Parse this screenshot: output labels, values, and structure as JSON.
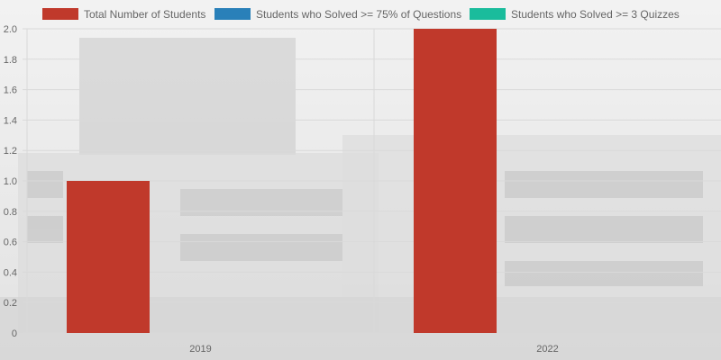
{
  "colors": {
    "series_1": "#c0392b",
    "series_2": "#2980b9",
    "series_3": "#1abc9c",
    "grid": "#d9d9d9",
    "text": "#666666"
  },
  "chart_data": {
    "type": "bar",
    "title": "",
    "xlabel": "",
    "ylabel": "",
    "categories": [
      "2019",
      "2022"
    ],
    "series": [
      {
        "name": "Total Number of Students",
        "values": [
          1,
          2
        ],
        "color": "#c0392b"
      },
      {
        "name": "Students who Solved >= 75% of Questions",
        "values": [
          0,
          0
        ],
        "color": "#2980b9"
      },
      {
        "name": "Students who Solved >= 3 Quizzes",
        "values": [
          0,
          0
        ],
        "color": "#1abc9c"
      }
    ],
    "ylim": [
      0,
      2.0
    ],
    "yticks": [
      "0",
      "0.2",
      "0.4",
      "0.6",
      "0.8",
      "1.0",
      "1.2",
      "1.4",
      "1.6",
      "1.8",
      "2.0"
    ],
    "grid": true,
    "legend_position": "top"
  }
}
